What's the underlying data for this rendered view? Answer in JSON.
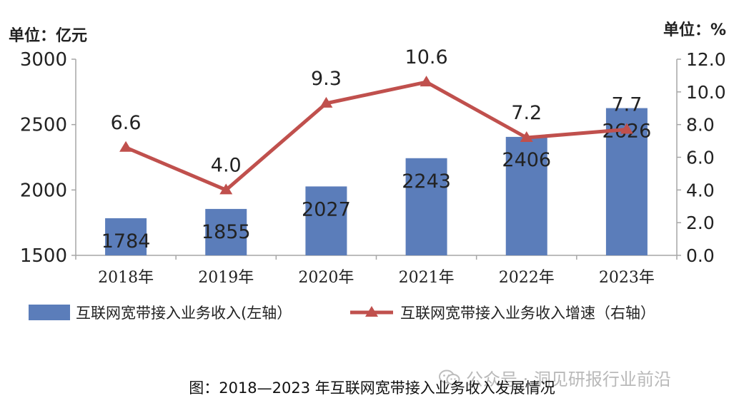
{
  "chart_data": {
    "type": "bar",
    "categories": [
      "2018年",
      "2019年",
      "2020年",
      "2021年",
      "2022年",
      "2023年"
    ],
    "series": [
      {
        "name": "互联网宽带接入业务收入(左轴）",
        "type": "bar",
        "axis": "left",
        "values": [
          1784,
          1855,
          2027,
          2243,
          2406,
          2626
        ],
        "labels": [
          "1784",
          "1855",
          "2027",
          "2243",
          "2406",
          "2626"
        ],
        "color": "#5b7dba"
      },
      {
        "name": "互联网宽带接入业务收入增速（右轴）",
        "type": "line",
        "axis": "right",
        "values": [
          6.6,
          4.0,
          9.3,
          10.6,
          7.2,
          7.7
        ],
        "labels": [
          "6.6",
          "4.0",
          "9.3",
          "10.6",
          "7.2",
          "7.7"
        ],
        "color": "#c0504d",
        "marker": "triangle"
      }
    ],
    "left_axis": {
      "unit_label": "单位：亿元",
      "ylim": [
        1500,
        3000
      ],
      "ticks": [
        1500,
        2000,
        2500,
        3000
      ],
      "tick_labels": [
        "1500",
        "2000",
        "2500",
        "3000"
      ]
    },
    "right_axis": {
      "unit_label": "单位：%",
      "ylim": [
        0,
        12
      ],
      "ticks": [
        0,
        2,
        4,
        6,
        8,
        10,
        12
      ],
      "tick_labels": [
        "0.0",
        "2.0",
        "4.0",
        "6.0",
        "8.0",
        "10.0",
        "12.0"
      ]
    },
    "grid": false,
    "legend_position": "bottom"
  },
  "caption": "图：2018—2023 年互联网宽带接入业务收入发展情况",
  "watermark": "公众号 · 洞见研报行业前沿"
}
